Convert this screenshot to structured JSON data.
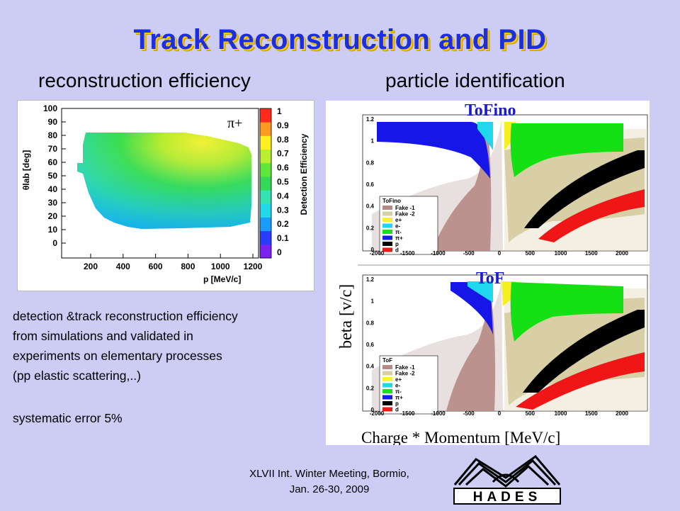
{
  "slide": {
    "title": "Track Reconstruction and PID",
    "left_subheading": "reconstruction efficiency",
    "right_subheading": "particle identification",
    "description_lines": [
      "detection &track reconstruction efficiency",
      "from simulations and validated in",
      "experiments on elementary processes",
      "(pp elastic scattering,..)"
    ],
    "systematic_error": "systematic error 5%",
    "footer_lines": [
      "XLVII Int. Winter Meeting, Bormio,",
      "Jan. 26-30, 2009"
    ],
    "logo_text": "HADES"
  },
  "efficiency_plot": {
    "xlabel": "p [MeV/c]",
    "ylabel": "θlab [deg]",
    "particle_label": "π+",
    "colorbar_label": "Detection Efficiency",
    "x_ticks": [
      "200",
      "400",
      "600",
      "800",
      "1000",
      "1200"
    ],
    "y_ticks": [
      "0",
      "10",
      "20",
      "30",
      "40",
      "50",
      "60",
      "70",
      "80",
      "90",
      "100"
    ],
    "colorbar_ticks": [
      "0",
      "0.1",
      "0.2",
      "0.3",
      "0.4",
      "0.5",
      "0.6",
      "0.7",
      "0.8",
      "0.9",
      "1"
    ],
    "colorbar_colors": [
      "#7b22f0",
      "#2a3cff",
      "#1a9cff",
      "#22d8e8",
      "#33e4b2",
      "#36d85a",
      "#5ee83a",
      "#b8ef30",
      "#ffef20",
      "#ff9a20",
      "#ff2a1a"
    ]
  },
  "pid_plots": {
    "ylabel": "beta [v/c]",
    "xlabel": "Charge * Momentum [MeV/c]",
    "x_ticks": [
      "-2000",
      "-1500",
      "-1000",
      "-500",
      "0",
      "500",
      "1000",
      "1500",
      "2000"
    ],
    "y_ticks": [
      "0",
      "0.2",
      "0.4",
      "0.6",
      "0.8",
      "1",
      "1.2"
    ],
    "panels": [
      {
        "name": "ToFino",
        "legend_title": "ToFino",
        "legend": [
          "Fake -1",
          "Fake -2",
          "e+",
          "e-",
          "π-",
          "π+",
          "p",
          "d"
        ]
      },
      {
        "name": "ToF",
        "legend_title": "ToF",
        "legend": [
          "Fake -1",
          "Fake -2",
          "e+",
          "e-",
          "π-",
          "π+",
          "p",
          "d"
        ]
      }
    ],
    "legend_colors": [
      "#b58a86",
      "#d8cfa6",
      "#f7f32a",
      "#1fd6ee",
      "#1ae01a",
      "#1a1aee",
      "#000000",
      "#ee1a1a"
    ]
  }
}
